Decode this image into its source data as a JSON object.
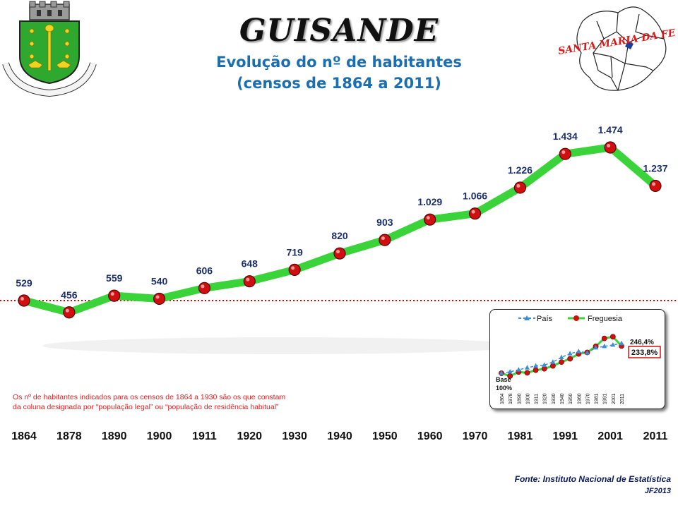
{
  "header": {
    "title": "GUISANDE",
    "subtitle_line1": "Evolução do nº de habitantes",
    "subtitle_line2": "(censos de 1864 a 2011)"
  },
  "crest": {
    "motto": "GUISANDE · SANTA MARIA DA FEIRA"
  },
  "map": {
    "label": "SANTA MARIA DA FEIRA"
  },
  "note": {
    "line1": "Os nº de habitantes indicados para os censos de 1864 a 1930 são os que constam",
    "line2": "da coluna designada por “população legal” ou “população de residência habitual”"
  },
  "source": {
    "text": "Fonte: Instituto Nacional de Estatística",
    "code": "JF2013"
  },
  "chart_data": [
    {
      "type": "line",
      "categories": [
        "1864",
        "1878",
        "1890",
        "1900",
        "1911",
        "1920",
        "1930",
        "1940",
        "1950",
        "1960",
        "1970",
        "1981",
        "1991",
        "2001",
        "2011"
      ],
      "series": [
        {
          "values": [
            529,
            456,
            559,
            540,
            606,
            648,
            719,
            820,
            903,
            1029,
            1066,
            1226,
            1434,
            1474,
            1237
          ],
          "color": "#3ad33a"
        }
      ],
      "data_labels": [
        "529",
        "456",
        "559",
        "540",
        "606",
        "648",
        "719",
        "820",
        "903",
        "1.029",
        "1.066",
        "1.226",
        "1.434",
        "1.474",
        "1.237"
      ],
      "reference_line": {
        "value": 529,
        "color": "#e00000",
        "style": "dotted"
      },
      "point_color": "#d01010",
      "label_color": "#1a2f6b"
    },
    {
      "type": "line",
      "legend": [
        "País",
        "Freguesia"
      ],
      "categories": [
        "1864",
        "1878",
        "1890",
        "1900",
        "1911",
        "1920",
        "1930",
        "1940",
        "1950",
        "1960",
        "1970",
        "1981",
        "1991",
        "2001",
        "2011"
      ],
      "series": [
        {
          "name": "País",
          "values": [
            100,
            107,
            117,
            127,
            136,
            140,
            155,
            178,
            196,
            207,
            200,
            225,
            232,
            239,
            246.4
          ],
          "color": "#3a8fd8",
          "marker": "triangle"
        },
        {
          "name": "Freguesia",
          "values": [
            100,
            86,
            106,
            102,
            115,
            122,
            136,
            155,
            171,
            195,
            202,
            232,
            271,
            279,
            233.8
          ],
          "color": "#3ad33a",
          "marker": "circle"
        }
      ],
      "annotations": {
        "base_label": "Base",
        "base_value": "100%",
        "pais_end": "246,4%",
        "freguesia_end": "233,8%"
      }
    }
  ]
}
